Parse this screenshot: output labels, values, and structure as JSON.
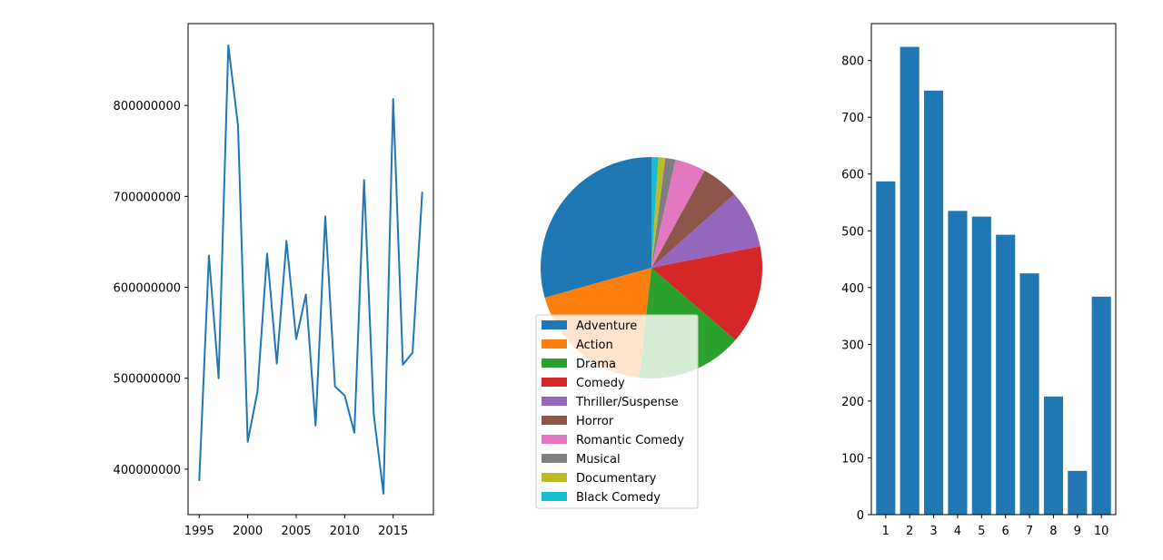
{
  "chart_data": [
    {
      "type": "line",
      "title": "",
      "xlabel": "",
      "ylabel": "",
      "color": "#1f77b4",
      "x": [
        1995,
        1996,
        1997,
        1998,
        1999,
        2000,
        2001,
        2002,
        2003,
        2004,
        2005,
        2006,
        2007,
        2008,
        2009,
        2010,
        2011,
        2012,
        2013,
        2014,
        2015,
        2016,
        2017,
        2018
      ],
      "y": [
        387000000,
        635000000,
        500000000,
        866000000,
        778000000,
        430000000,
        485000000,
        637000000,
        516000000,
        651000000,
        543000000,
        592000000,
        448000000,
        678000000,
        491000000,
        481000000,
        440000000,
        718000000,
        460000000,
        373000000,
        807000000,
        515000000,
        528000000,
        705000000
      ],
      "xlim": [
        1993.85,
        2019.15
      ],
      "ylim": [
        350000000,
        890000000
      ],
      "xticks": [
        "1995",
        "2000",
        "2005",
        "2010",
        "2015"
      ],
      "xtick_values": [
        1995,
        2000,
        2005,
        2010,
        2015
      ],
      "yticks": [
        "400000000",
        "500000000",
        "600000000",
        "700000000",
        "800000000"
      ],
      "ytick_values": [
        400000000,
        500000000,
        600000000,
        700000000,
        800000000
      ],
      "grid": false
    },
    {
      "type": "pie",
      "title": "",
      "legend_position": "lower-center",
      "start_angle": 90,
      "direction": "counterclockwise",
      "labels": [
        "Adventure",
        "Action",
        "Drama",
        "Comedy",
        "Thriller/Suspense",
        "Horror",
        "Romantic Comedy",
        "Musical",
        "Documentary",
        "Black Comedy"
      ],
      "values": [
        29.5,
        19.0,
        15.5,
        14.5,
        8.5,
        5.5,
        4.5,
        1.5,
        1.0,
        1.0
      ],
      "colors": [
        "#1f77b4",
        "#ff7f0e",
        "#2ca02c",
        "#d62728",
        "#9467bd",
        "#8c564b",
        "#e377c2",
        "#7f7f7f",
        "#bcbd22",
        "#17becf"
      ]
    },
    {
      "type": "bar",
      "title": "",
      "xlabel": "",
      "ylabel": "",
      "color": "#1f77b4",
      "categories": [
        "1",
        "2",
        "3",
        "4",
        "5",
        "6",
        "7",
        "8",
        "9",
        "10"
      ],
      "values": [
        587,
        824,
        747,
        535,
        525,
        493,
        425,
        208,
        77,
        384
      ],
      "ylim": [
        0,
        865
      ],
      "yticks": [
        "0",
        "100",
        "200",
        "300",
        "400",
        "500",
        "600",
        "700",
        "800"
      ],
      "ytick_values": [
        0,
        100,
        200,
        300,
        400,
        500,
        600,
        700,
        800
      ],
      "grid": false
    }
  ]
}
